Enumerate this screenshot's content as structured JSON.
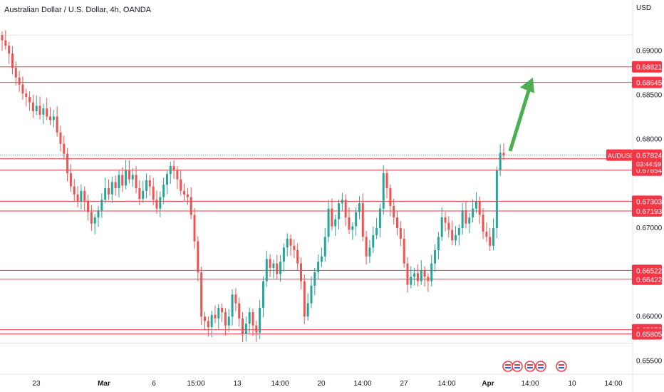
{
  "header": {
    "title": "Australian Dollar / U.S. Dollar, 4h, OANDA",
    "currency": "USD"
  },
  "colors": {
    "up": "#26a69a",
    "down": "#ef5350",
    "level_line": "#f23645",
    "arrow": "#4caf50",
    "text": "#131722",
    "grid": "#f0f3fa",
    "axis": "#e0e3eb"
  },
  "chart_data": {
    "type": "candlestick",
    "symbol": "AUDUSD",
    "timeframe": "4h",
    "ylim": [
      0.6535,
      0.6935
    ],
    "y_ticks": [
      "0.69000",
      "0.68500",
      "0.68000",
      "0.67000",
      "0.66000",
      "0.65500"
    ],
    "x_ticks": [
      "23",
      "Mar",
      "6",
      "15:00",
      "13",
      "14:00",
      "20",
      "14:00",
      "27",
      "14:00",
      "Apr",
      "14:00",
      "10",
      "14:00"
    ],
    "horizontal_levels": [
      {
        "value": 0.68821,
        "label": "0.68821"
      },
      {
        "value": 0.68645,
        "label": "0.68645"
      },
      {
        "value": 0.67783,
        "label": "0.67783"
      },
      {
        "value": 0.67654,
        "label": "0.67654"
      },
      {
        "value": 0.67303,
        "label": "0.67303"
      },
      {
        "value": 0.67193,
        "label": "0.67193"
      },
      {
        "value": 0.66522,
        "label": "0.66522"
      },
      {
        "value": 0.66422,
        "label": "0.66422"
      },
      {
        "value": 0.65852,
        "label": "0.65852"
      },
      {
        "value": 0.65805,
        "label": "0.65805"
      }
    ],
    "current_price": {
      "value": 0.67824,
      "label": "0.67824",
      "symbol": "AUDUSD",
      "countdown": "03:44:59"
    },
    "close_series": [
      0.6912,
      0.6906,
      0.6897,
      0.6881,
      0.687,
      0.6862,
      0.6852,
      0.6848,
      0.6842,
      0.6832,
      0.6838,
      0.6828,
      0.6835,
      0.6826,
      0.6822,
      0.6826,
      0.6808,
      0.6795,
      0.6784,
      0.6762,
      0.6747,
      0.6738,
      0.673,
      0.6742,
      0.6731,
      0.6718,
      0.6705,
      0.6712,
      0.672,
      0.6732,
      0.6745,
      0.6738,
      0.6752,
      0.6745,
      0.676,
      0.6748,
      0.6765,
      0.6755,
      0.676,
      0.6745,
      0.6733,
      0.6742,
      0.6754,
      0.6747,
      0.6732,
      0.6722,
      0.6735,
      0.6749,
      0.6761,
      0.677,
      0.6765,
      0.6755,
      0.6742,
      0.6738,
      0.6735,
      0.6715,
      0.6685,
      0.665,
      0.66,
      0.6595,
      0.6588,
      0.6602,
      0.6598,
      0.661,
      0.6605,
      0.659,
      0.66,
      0.6625,
      0.6615,
      0.6598,
      0.658,
      0.6592,
      0.6605,
      0.659,
      0.6582,
      0.661,
      0.664,
      0.6665,
      0.6655,
      0.666,
      0.6648,
      0.6662,
      0.6678,
      0.6688,
      0.668,
      0.6675,
      0.666,
      0.664,
      0.66,
      0.6615,
      0.6635,
      0.665,
      0.6662,
      0.6668,
      0.669,
      0.6722,
      0.6702,
      0.671,
      0.6728,
      0.6732,
      0.6712,
      0.6698,
      0.6702,
      0.6718,
      0.6728,
      0.669,
      0.6668,
      0.6678,
      0.6692,
      0.67,
      0.6722,
      0.6762,
      0.6745,
      0.6725,
      0.6712,
      0.67,
      0.6688,
      0.666,
      0.6636,
      0.6645,
      0.6649,
      0.664,
      0.6652,
      0.6645,
      0.664,
      0.666,
      0.6675,
      0.669,
      0.6712,
      0.6706,
      0.6698,
      0.6686,
      0.6692,
      0.67,
      0.672,
      0.6705,
      0.6712,
      0.6722,
      0.673,
      0.6715,
      0.6696,
      0.669,
      0.668,
      0.67,
      0.6765,
      0.6785,
      0.6782
    ]
  }
}
